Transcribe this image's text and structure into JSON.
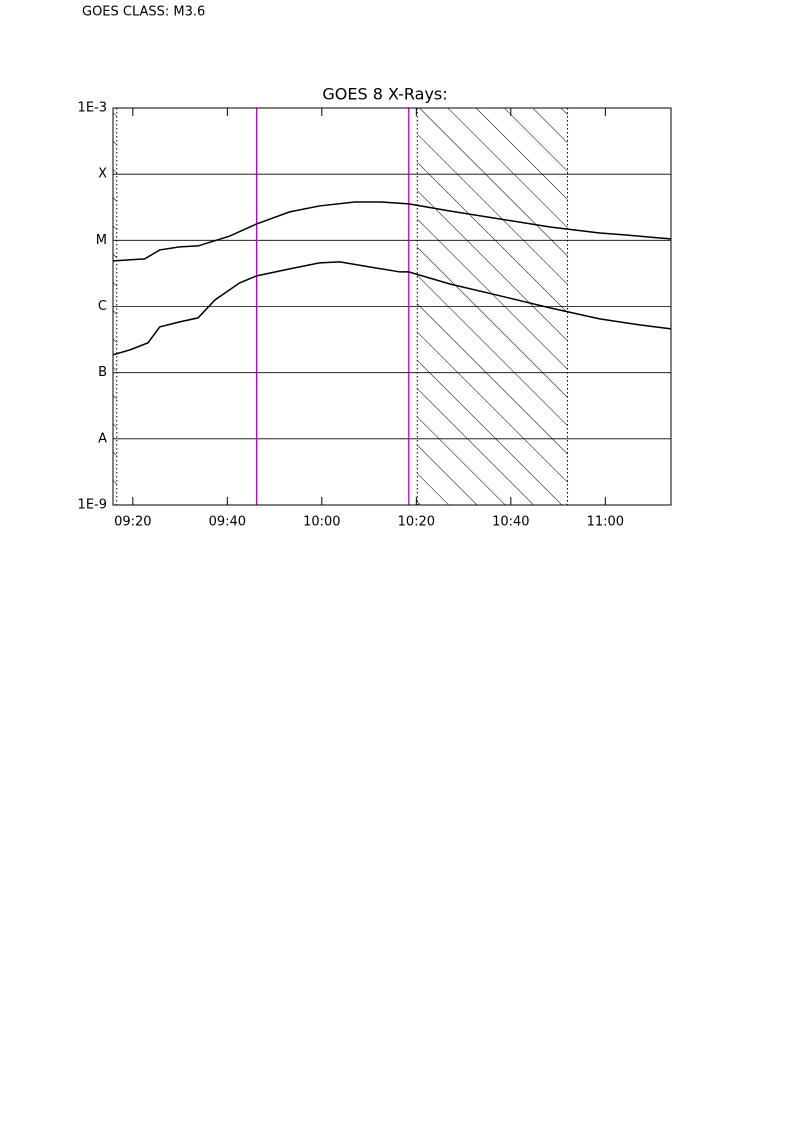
{
  "header": "GOES CLASS: M3.6",
  "chart_data": {
    "type": "line",
    "title": "GOES 8 X-Rays:",
    "log_y": true,
    "xlim": [
      555.8,
      673.9
    ],
    "xticks": [
      {
        "value": 560,
        "label": "09:20"
      },
      {
        "value": 580,
        "label": "09:40"
      },
      {
        "value": 600,
        "label": "10:00"
      },
      {
        "value": 620,
        "label": "10:20"
      },
      {
        "value": 640,
        "label": "10:40"
      },
      {
        "value": 660,
        "label": "11:00"
      }
    ],
    "ylim": [
      1e-09,
      0.001
    ],
    "yticks": [
      {
        "value": 1e-09,
        "label": "1E-9"
      },
      {
        "value": 1e-08,
        "label": "A"
      },
      {
        "value": 1e-07,
        "label": "B"
      },
      {
        "value": 1e-06,
        "label": "C"
      },
      {
        "value": 1e-05,
        "label": "M"
      },
      {
        "value": 0.0001,
        "label": "X"
      },
      {
        "value": 0.001,
        "label": "1E-3"
      }
    ],
    "grid": true,
    "series": [
      {
        "color": "#000000",
        "x": [
          555.8,
          562.5,
          565.7,
          569.9,
          573.8,
          580.5,
          586.2,
          593.2,
          599.5,
          607.0,
          612.3,
          618.4,
          627.1,
          637.7,
          648.3,
          658.8,
          664.1,
          669.4,
          673.9
        ],
        "values": [
          4.89e-06,
          5.24e-06,
          7.16e-06,
          7.95e-06,
          8.23e-06,
          1.16e-05,
          1.77e-05,
          2.69e-05,
          3.31e-05,
          3.8e-05,
          3.8e-05,
          3.55e-05,
          2.78e-05,
          2.1e-05,
          1.59e-05,
          1.29e-05,
          1.21e-05,
          1.12e-05,
          1.05e-05
        ]
      },
      {
        "color": "#000000",
        "x": [
          555.8,
          559.4,
          563.2,
          565.7,
          569.9,
          573.8,
          577.4,
          582.6,
          586.2,
          593.2,
          599.5,
          603.8,
          610.2,
          616.5,
          618.4,
          627.1,
          637.7,
          648.3,
          658.8,
          667.3,
          673.9
        ],
        "values": [
          1.86e-07,
          2.21e-07,
          2.82e-07,
          4.92e-07,
          5.85e-07,
          6.73e-07,
          1.26e-06,
          2.27e-06,
          2.9e-06,
          3.7e-06,
          4.56e-06,
          4.72e-06,
          3.96e-06,
          3.33e-06,
          3.33e-06,
          2.19e-06,
          1.45e-06,
          9.53e-07,
          6.5e-07,
          5.27e-07,
          4.59e-07
        ]
      }
    ],
    "vlines": [
      {
        "x": 556.6,
        "color": "#000000",
        "style": "dotted"
      },
      {
        "x": 586.2,
        "color": "#c000c0",
        "style": "solid"
      },
      {
        "x": 618.4,
        "color": "#c000c0",
        "style": "solid"
      },
      {
        "x": 620.2,
        "color": "#000000",
        "style": "dotted"
      },
      {
        "x": 652.0,
        "color": "#000000",
        "style": "dotted"
      }
    ],
    "hatched": [
      [
        555.8,
        556.6
      ],
      [
        620.2,
        652.0
      ]
    ]
  }
}
